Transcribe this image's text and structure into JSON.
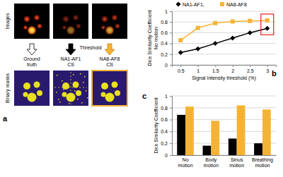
{
  "chart_data": [
    {
      "type": "line",
      "panel_label": "b",
      "ylabel": [
        "Dice Similarity Coefficient",
        "No motion"
      ],
      "xlabel": "Signal intensity threshold (%)",
      "x": [
        0.5,
        1,
        1.5,
        2,
        2.5,
        3
      ],
      "series": [
        {
          "name": "NA1-AF1,",
          "color": "#000000",
          "marker": "diamond",
          "values": [
            0.23,
            0.3,
            0.4,
            0.5,
            0.6,
            0.68
          ]
        },
        {
          "name": "NA8-AF8",
          "color": "#f5b335",
          "marker": "square",
          "values": [
            0.46,
            0.69,
            0.78,
            0.81,
            0.82,
            0.83
          ]
        }
      ],
      "xlim": [
        0.25,
        3.25
      ],
      "xticks": [
        0.5,
        1,
        1.5,
        2,
        2.5,
        3
      ],
      "ylim": [
        0,
        1
      ],
      "yticks": [
        0,
        0.2,
        0.4,
        0.6,
        0.8,
        1
      ],
      "grid": true,
      "legend": "top"
    },
    {
      "type": "bar",
      "panel_label": "c",
      "ylabel": "Dice Similarity Coefficient",
      "categories": [
        "No motion",
        "Body motion",
        "Sinus motion",
        "Breathing motion"
      ],
      "series": [
        {
          "color": "#000000",
          "values": [
            0.68,
            0.16,
            0.28,
            0.2
          ]
        },
        {
          "color": "#f5b335",
          "values": [
            0.82,
            0.58,
            0.84,
            0.77
          ]
        }
      ],
      "ylim": [
        0,
        1
      ],
      "yticks": [
        0,
        0.2,
        0.4,
        0.6,
        0.8,
        1
      ],
      "grid": true
    }
  ],
  "panel_a": {
    "panel_label": "a",
    "row_labels": [
      "Images",
      "Binary masks"
    ],
    "threshold": "Threshold",
    "columns": [
      "Ground truth",
      "NA1-AF1 CS",
      "NA8-AF8 CS"
    ]
  }
}
